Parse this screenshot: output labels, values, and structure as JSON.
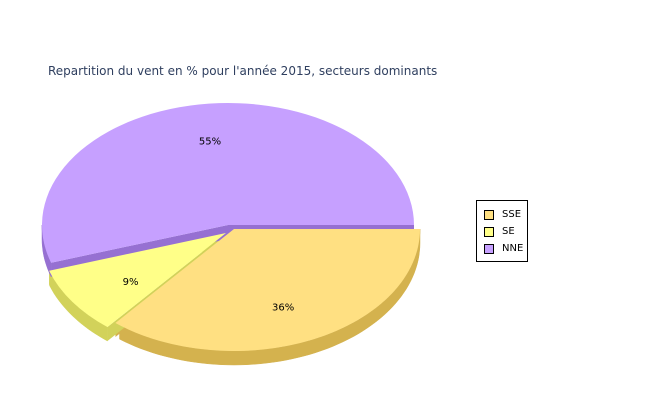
{
  "chart_data": {
    "type": "pie",
    "title": "Repartition du vent en % pour l'année 2015, secteurs dominants",
    "categories": [
      "SSE",
      "SE",
      "NNE"
    ],
    "values": [
      36,
      9,
      55
    ],
    "data_labels": [
      "36%",
      "9%",
      "55%"
    ],
    "colors": [
      "#ffe082",
      "#ffff88",
      "#c6a0ff"
    ],
    "side_colors": [
      "#d4b24e",
      "#d2d25a",
      "#9670d2"
    ],
    "legend": {
      "placement": "right",
      "entries": [
        "SSE",
        "SE",
        "NNE"
      ]
    },
    "exploded": true,
    "three_d": true
  }
}
